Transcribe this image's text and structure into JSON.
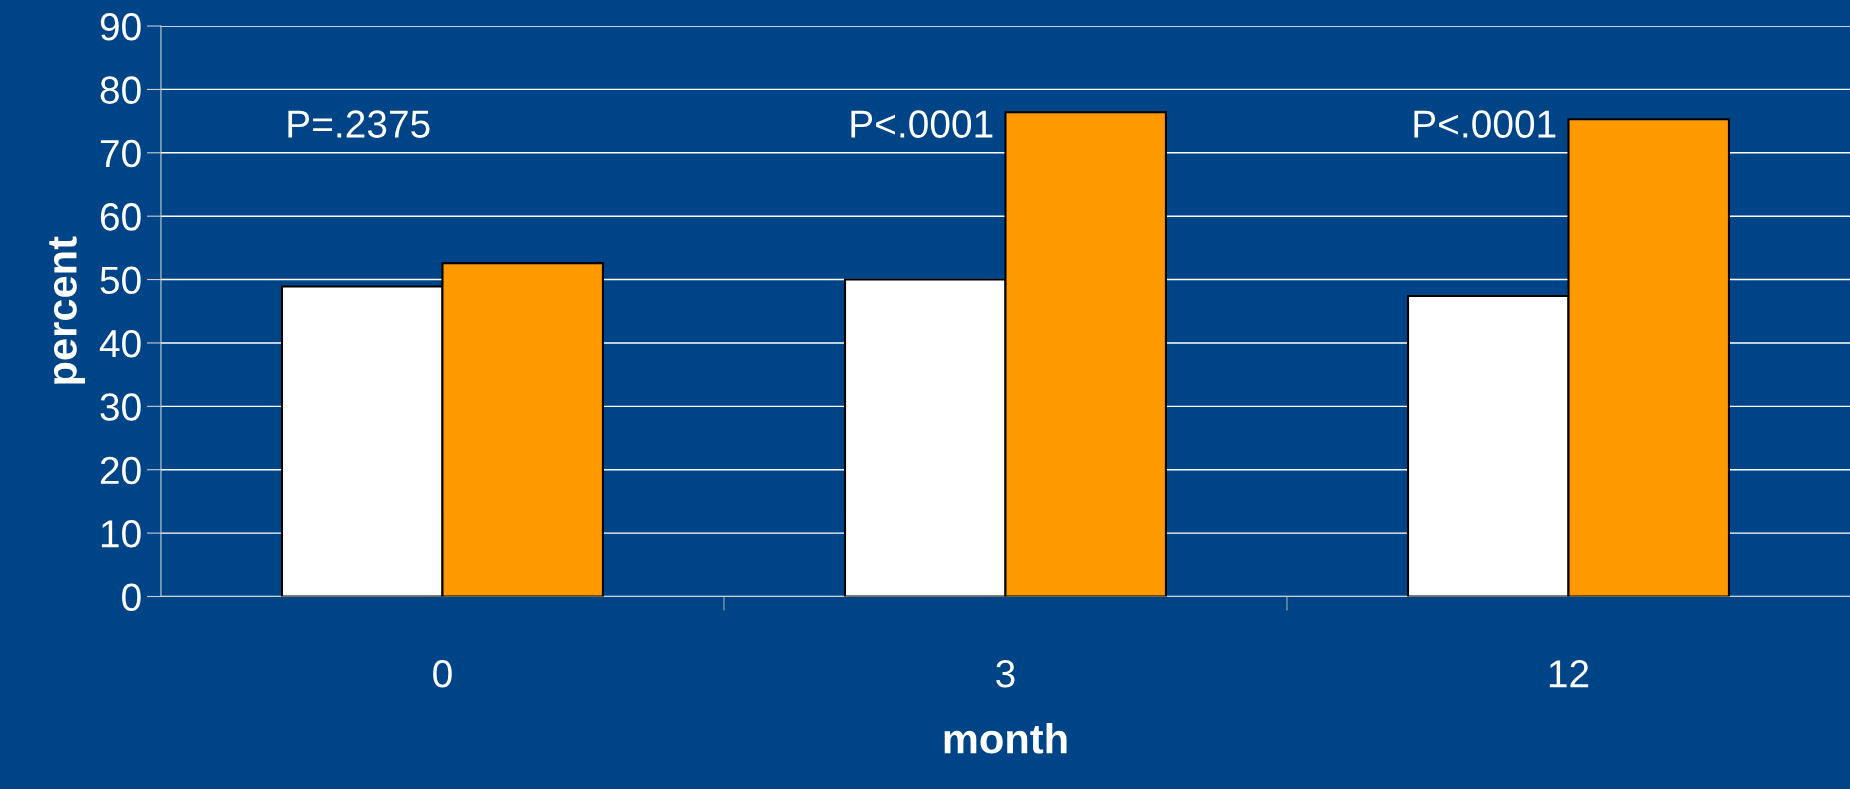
{
  "chart_data": {
    "type": "bar",
    "xlabel": "month",
    "ylabel": "percent",
    "categories": [
      "0",
      "3",
      "12"
    ],
    "series": [
      {
        "color": "#ffffff",
        "values": [
          48.9,
          50.0,
          47.4
        ]
      },
      {
        "color": "#ff9900",
        "values": [
          52.6,
          76.4,
          75.3
        ]
      }
    ],
    "ylim": [
      0,
      90
    ],
    "yticks": [
      0,
      10,
      20,
      30,
      40,
      50,
      60,
      70,
      80,
      90
    ],
    "grid": "y",
    "legend": false,
    "annotations": [
      "P=.2375",
      "P<.0001",
      "P<.0001"
    ]
  }
}
